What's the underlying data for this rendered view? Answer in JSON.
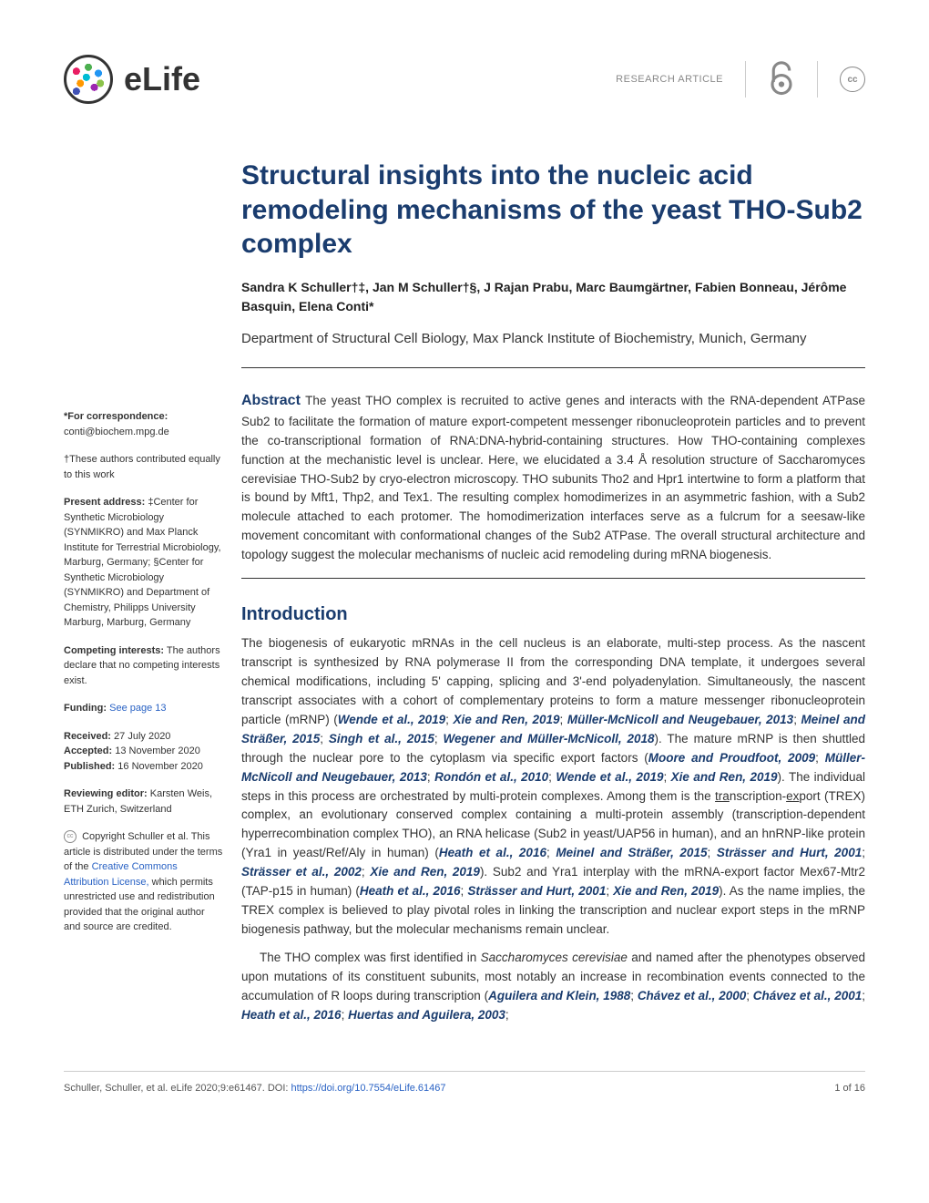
{
  "header": {
    "journal": "eLife",
    "article_type": "RESEARCH ARTICLE",
    "cc_label": "cc"
  },
  "title": "Structural insights into the nucleic acid remodeling mechanisms of the yeast THO-Sub2 complex",
  "authors": "Sandra K Schuller†‡, Jan M Schuller†§, J Rajan Prabu, Marc Baumgärtner, Fabien Bonneau, Jérôme Basquin, Elena Conti*",
  "affiliation": "Department of Structural Cell Biology, Max Planck Institute of Biochemistry, Munich, Germany",
  "abstract": {
    "label": "Abstract",
    "text": "The yeast THO complex is recruited to active genes and interacts with the RNA-dependent ATPase Sub2 to facilitate the formation of mature export-competent messenger ribonucleoprotein particles and to prevent the co-transcriptional formation of RNA:DNA-hybrid-containing structures. How THO-containing complexes function at the mechanistic level is unclear. Here, we elucidated a 3.4 Å resolution structure of Saccharomyces cerevisiae THO-Sub2 by cryo-electron microscopy. THO subunits Tho2 and Hpr1 intertwine to form a platform that is bound by Mft1, Thp2, and Tex1. The resulting complex homodimerizes in an asymmetric fashion, with a Sub2 molecule attached to each protomer. The homodimerization interfaces serve as a fulcrum for a seesaw-like movement concomitant with conformational changes of the Sub2 ATPase. The overall structural architecture and topology suggest the molecular mechanisms of nucleic acid remodeling during mRNA biogenesis."
  },
  "sidebar": {
    "correspondence_label": "*For correspondence:",
    "correspondence_email": "conti@biochem.mpg.de",
    "equal_contrib": "†These authors contributed equally to this work",
    "present_address_label": "Present address:",
    "present_address_text": "‡Center for Synthetic Microbiology (SYNMIKRO) and Max Planck Institute for Terrestrial Microbiology, Marburg, Germany; §Center for Synthetic Microbiology (SYNMIKRO) and Department of Chemistry, Philipps University Marburg, Marburg, Germany",
    "competing_label": "Competing interests:",
    "competing_text": "The authors declare that no competing interests exist.",
    "funding_label": "Funding:",
    "funding_link": "See page 13",
    "received_label": "Received:",
    "received_date": "27 July 2020",
    "accepted_label": "Accepted:",
    "accepted_date": "13 November 2020",
    "published_label": "Published:",
    "published_date": "16 November 2020",
    "reviewing_label": "Reviewing editor:",
    "reviewing_text": "Karsten Weis, ETH Zurich, Switzerland",
    "copyright_text": "Copyright Schuller et al. This article is distributed under the terms of the ",
    "copyright_link": "Creative Commons Attribution License,",
    "copyright_text2": " which permits unrestricted use and redistribution provided that the original author and source are credited."
  },
  "intro": {
    "heading": "Introduction",
    "para1_pre": "The biogenesis of eukaryotic mRNAs in the cell nucleus is an elaborate, multi-step process. As the nascent transcript is synthesized by RNA polymerase II from the corresponding DNA template, it undergoes several chemical modifications, including 5' capping, splicing and 3'-end polyadenylation. Simultaneously, the nascent transcript associates with a cohort of complementary proteins to form a mature messenger ribonucleoprotein particle (mRNP) (",
    "refs1": [
      "Wende et al., 2019",
      "Xie and Ren, 2019",
      "Müller-McNicoll and Neugebauer, 2013",
      "Meinel and Sträßer, 2015",
      "Singh et al., 2015",
      "Wegener and Müller-McNicoll, 2018"
    ],
    "para1_mid1": "). The mature mRNP is then shuttled through the nuclear pore to the cytoplasm via specific export factors (",
    "refs2": [
      "Moore and Proudfoot, 2009",
      "Müller-McNicoll and Neugebauer, 2013",
      "Rondón et al., 2010",
      "Wende et al., 2019",
      "Xie and Ren, 2019"
    ],
    "para1_mid2": "). The individual steps in this process are orchestrated by multi-protein complexes. Among them is the transcription-export (TREX) complex, an evolutionary conserved complex containing a multi-protein assembly (transcription-dependent hyperrecombination complex THO), an RNA helicase (Sub2 in yeast/UAP56 in human), and an hnRNP-like protein (Yra1 in yeast/Ref/Aly in human) (",
    "refs3": [
      "Heath et al., 2016",
      "Meinel and Sträßer, 2015",
      "Strässer and Hurt, 2001",
      "Strässer et al., 2002",
      "Xie and Ren, 2019"
    ],
    "para1_mid3": "). Sub2 and Yra1 interplay with the mRNA-export factor Mex67-Mtr2 (TAP-p15 in human) (",
    "refs4": [
      "Heath et al., 2016",
      "Strässer and Hurt, 2001",
      "Xie and Ren, 2019"
    ],
    "para1_end": "). As the name implies, the TREX complex is believed to play pivotal roles in linking the transcription and nuclear export steps in the mRNP biogenesis pathway, but the molecular mechanisms remain unclear.",
    "para2_pre": "The THO complex was first identified in Saccharomyces cerevisiae and named after the phenotypes observed upon mutations of its constituent subunits, most notably an increase in recombination events connected to the accumulation of R loops during transcription (",
    "refs5": [
      "Aguilera and Klein, 1988",
      "Chávez et al., 2000",
      "Chávez et al., 2001",
      "Heath et al., 2016",
      "Huertas and Aguilera, 2003"
    ]
  },
  "footer": {
    "citation": "Schuller, Schuller, et al. eLife 2020;9:e61467. DOI: ",
    "doi": "https://doi.org/10.7554/eLife.61467",
    "page": "1 of 16"
  },
  "colors": {
    "heading": "#1a3c6e",
    "link": "#2962c4"
  }
}
